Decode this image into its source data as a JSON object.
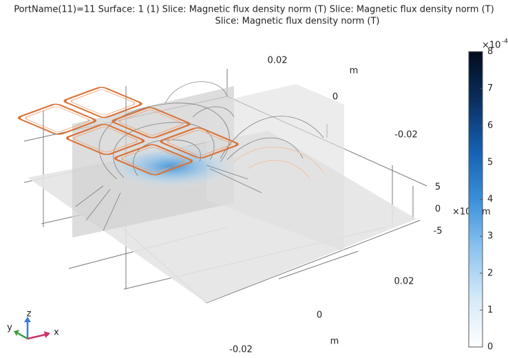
{
  "title": [
    "PortName(11)=11  Surface: 1 (1)  Slice: Magnetic flux density norm (T)  Slice: Magnetic flux density norm (T)",
    "Slice: Magnetic flux density norm (T)"
  ],
  "axis_labels": [
    "0.02",
    "m",
    "0",
    "-0.02",
    "5",
    "0",
    "-5",
    "×10",
    "m",
    "0.02",
    "0",
    "-0.02",
    "m"
  ],
  "triad": [
    "x",
    "y",
    "z"
  ],
  "colorbar": {
    "multiplier": "×10",
    "exponent": "-4",
    "ticks": [
      0,
      1,
      2,
      3,
      4,
      5,
      6,
      7,
      8
    ],
    "range": [
      0,
      8
    ],
    "colormap": [
      "#ffffff",
      "#d4e9f8",
      "#8cc4ee",
      "#3a8fd8",
      "#1460b0",
      "#0a2f60",
      "#020b1c"
    ]
  }
}
